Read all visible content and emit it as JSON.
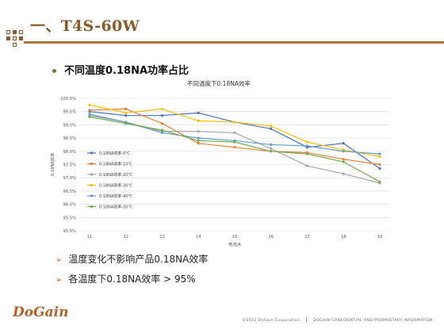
{
  "slide": {
    "title": "一、T4S-60W",
    "bullet": "不同温度0.18NA功率占比",
    "notes": [
      "温度变化不影响产品0.18NA效率",
      "各温度下0.18NA效率 > 95%"
    ],
    "logo": "DoGain",
    "footer_left": "©2022 DoGain Corporation",
    "footer_right": "DOGAIN CONFIDENTIAL AND PROPRIETARY INFORMATION"
  },
  "chart_data": {
    "type": "line",
    "title": "不同温度下0.18NA效率",
    "xlabel": "电流/A",
    "ylabel": "0.18NA效率",
    "x": [
      11,
      12,
      13,
      14,
      15,
      16,
      17,
      18,
      19
    ],
    "yticks": [
      "100.0%",
      "99.5%",
      "99.0%",
      "98.5%",
      "98.0%",
      "97.5%",
      "97.0%",
      "96.5%",
      "96.0%",
      "95.5%",
      "95.0%"
    ],
    "ylim": [
      95.0,
      100.0
    ],
    "grid": true,
    "legend": "left",
    "series": [
      {
        "name": "0.18NA效率-0℃",
        "color": "#4472c4",
        "values": [
          99.5,
          99.35,
          99.35,
          99.45,
          99.1,
          98.85,
          98.15,
          98.3,
          97.35
        ]
      },
      {
        "name": "0.18NA效率-10℃",
        "color": "#ed7d31",
        "values": [
          99.55,
          99.6,
          99.05,
          98.3,
          98.15,
          98.0,
          97.95,
          97.7,
          97.5
        ]
      },
      {
        "name": "0.18NA效率-20℃",
        "color": "#a5a5a5",
        "values": [
          99.35,
          99.1,
          98.75,
          98.75,
          98.7,
          98.1,
          97.45,
          97.15,
          96.8
        ]
      },
      {
        "name": "0.18NA效率-30℃",
        "color": "#ffc000",
        "values": [
          99.75,
          99.45,
          99.6,
          99.15,
          99.1,
          98.95,
          98.35,
          98.05,
          97.8
        ]
      },
      {
        "name": "0.18NA效率-40℃",
        "color": "#5b9bd5",
        "values": [
          99.4,
          99.1,
          98.7,
          98.5,
          98.4,
          98.25,
          98.2,
          98.0,
          97.9
        ]
      },
      {
        "name": "0.18NA效率-50℃",
        "color": "#70ad47",
        "values": [
          99.3,
          99.05,
          98.8,
          98.4,
          98.35,
          98.0,
          97.9,
          97.6,
          96.85
        ]
      }
    ]
  }
}
